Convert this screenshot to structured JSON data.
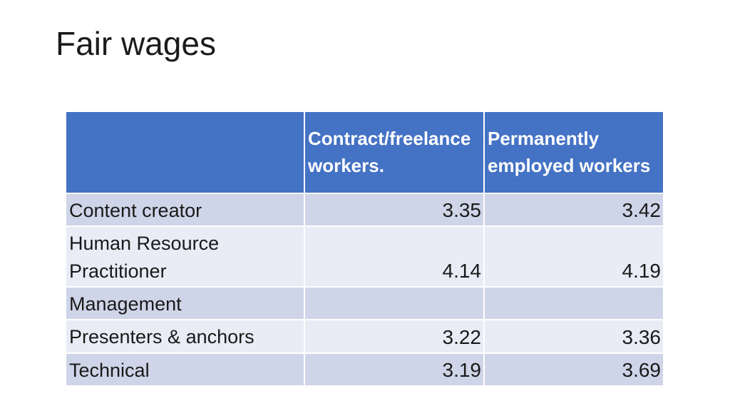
{
  "slide": {
    "title": "Fair wages"
  },
  "table": {
    "columns": [
      "",
      "Contract/freelance workers.",
      "Permanently employed workers"
    ],
    "rows": [
      {
        "label": "Content creator",
        "contract": "3.35",
        "permanent": "3.42"
      },
      {
        "label": "Human Resource Practitioner",
        "contract": "4.14",
        "permanent": "4.19"
      },
      {
        "label": "Management",
        "contract": "",
        "permanent": ""
      },
      {
        "label": "Presenters & anchors",
        "contract": "3.22",
        "permanent": "3.36"
      },
      {
        "label": "Technical",
        "contract": "3.19",
        "permanent": "3.69"
      }
    ],
    "colors": {
      "header_bg": "#4472C4",
      "header_text": "#FFFFFF",
      "band_dark": "#CFD5E8",
      "band_light": "#E9EBF5",
      "body_text": "#1A1A1A"
    }
  }
}
